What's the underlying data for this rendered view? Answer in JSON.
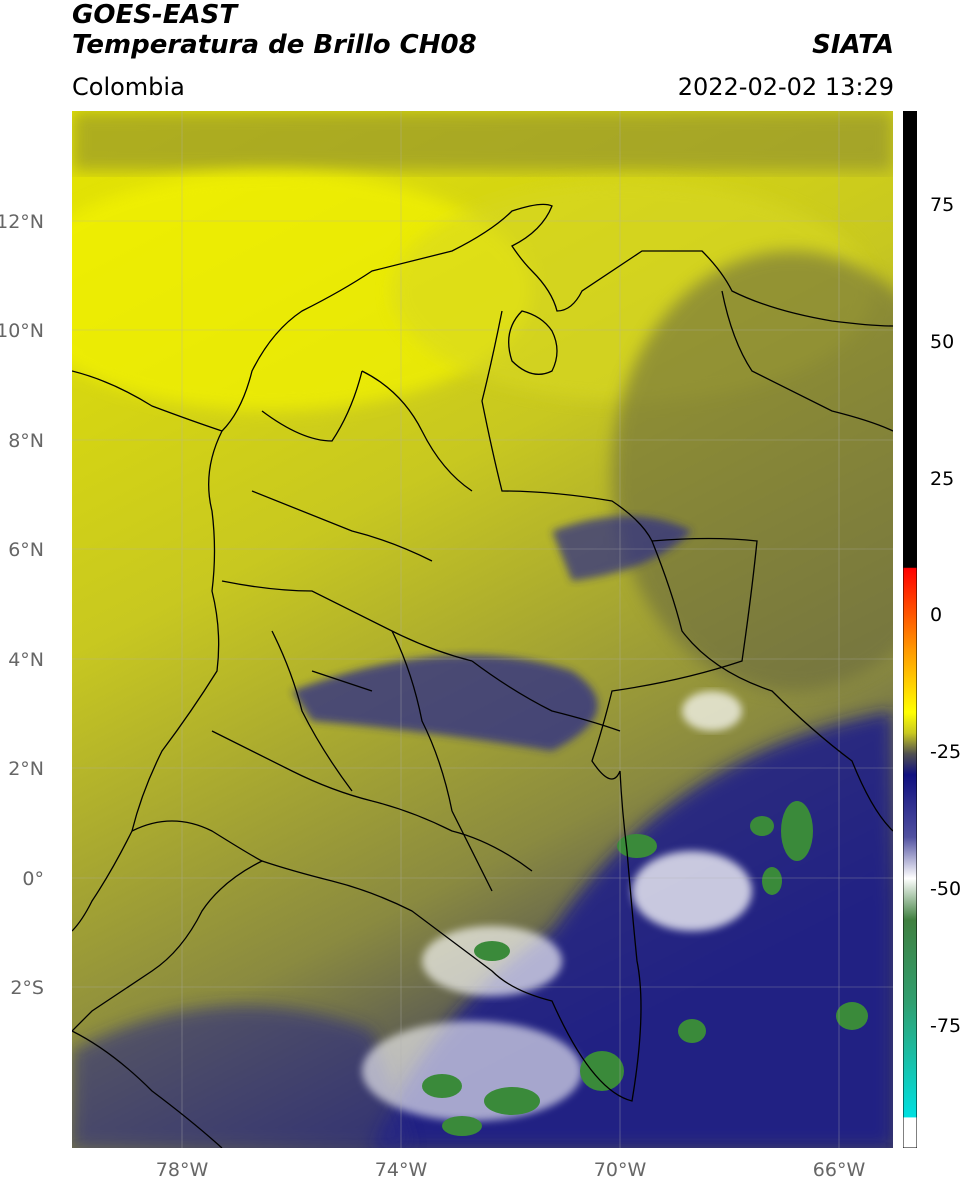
{
  "header": {
    "satellite": "GOES-EAST",
    "product": "Temperatura de Brillo CH08",
    "brand": "SIATA",
    "region": "Colombia",
    "datetime": "2022-02-02 13:29"
  },
  "map": {
    "lat_labels": [
      "12°N",
      "10°N",
      "8°N",
      "6°N",
      "4°N",
      "2°N",
      "0°",
      "2°S"
    ],
    "lon_labels": [
      "78°W",
      "74°W",
      "70°W",
      "66°W"
    ],
    "lon_range": [
      -80,
      -65
    ],
    "lat_range": [
      -5,
      14
    ],
    "colors": {
      "warm": "#e8e800",
      "mid": "#b8b830",
      "dark": "#6a6a50",
      "cold": "#1a1a8a",
      "very_cold": "#ffffff",
      "extreme": "#3a8a3a"
    }
  },
  "colorbar": {
    "ticks": [
      "75",
      "50",
      "25",
      "0",
      "-25",
      "-50",
      "-75"
    ],
    "range": [
      -95,
      90
    ]
  }
}
